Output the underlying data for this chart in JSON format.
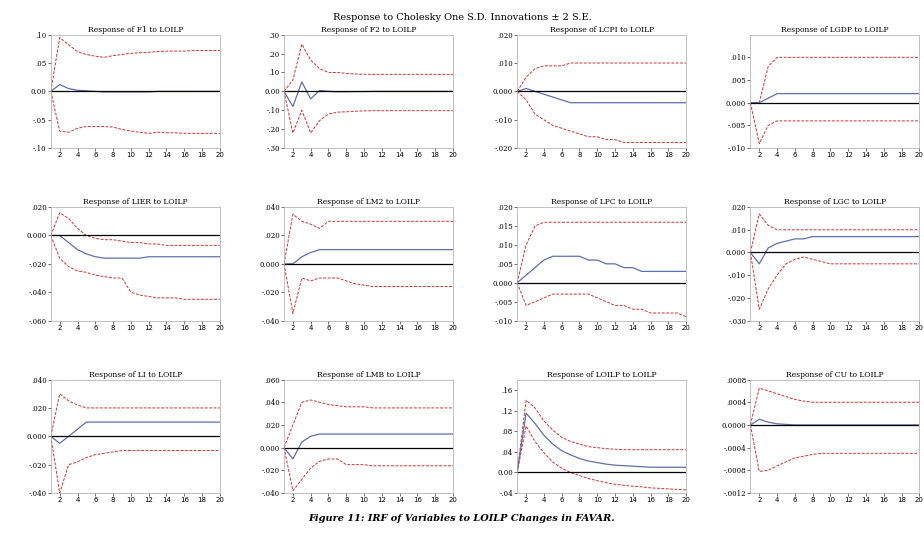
{
  "title": "Response to Cholesky One S.D. Innovations ± 2 S.E.",
  "caption": "Figure 11: IRF of Variables to LOILP Changes in FAVAR.",
  "n_periods": 20,
  "subplots": [
    {
      "title": "Response of F1 to LOILP",
      "ylim": [
        -0.1,
        0.1
      ],
      "yticks": [
        -0.1,
        -0.05,
        0.0,
        0.05,
        0.1
      ],
      "impulse": [
        0.0,
        0.012,
        0.005,
        0.002,
        0.001,
        0.0,
        -0.001,
        -0.001,
        -0.001,
        -0.001,
        -0.001,
        -0.001,
        0.0,
        0.0,
        0.0,
        0.0,
        0.0,
        0.0,
        0.0,
        0.0
      ],
      "upper": [
        0.0,
        0.095,
        0.082,
        0.07,
        0.065,
        0.062,
        0.06,
        0.063,
        0.065,
        0.067,
        0.068,
        0.069,
        0.07,
        0.071,
        0.071,
        0.071,
        0.072,
        0.072,
        0.072,
        0.072
      ],
      "lower": [
        0.0,
        -0.07,
        -0.072,
        -0.065,
        -0.062,
        -0.062,
        -0.062,
        -0.063,
        -0.067,
        -0.07,
        -0.072,
        -0.074,
        -0.072,
        -0.073,
        -0.073,
        -0.074,
        -0.074,
        -0.074,
        -0.074,
        -0.074
      ]
    },
    {
      "title": "Response of F2 to LOILP",
      "ylim": [
        -0.3,
        0.3
      ],
      "yticks": [
        -0.3,
        -0.2,
        -0.1,
        0.0,
        0.1,
        0.2,
        0.3
      ],
      "impulse": [
        0.0,
        -0.08,
        0.05,
        -0.04,
        0.005,
        0.0,
        -0.002,
        -0.002,
        -0.001,
        -0.001,
        0.0,
        0.0,
        0.0,
        0.0,
        0.0,
        0.0,
        0.0,
        0.0,
        0.0,
        0.0
      ],
      "upper": [
        0.0,
        0.06,
        0.25,
        0.165,
        0.12,
        0.1,
        0.1,
        0.095,
        0.092,
        0.09,
        0.09,
        0.09,
        0.09,
        0.09,
        0.09,
        0.09,
        0.09,
        0.09,
        0.09,
        0.09
      ],
      "lower": [
        0.0,
        -0.22,
        -0.1,
        -0.22,
        -0.155,
        -0.12,
        -0.11,
        -0.108,
        -0.105,
        -0.103,
        -0.102,
        -0.102,
        -0.102,
        -0.102,
        -0.102,
        -0.102,
        -0.102,
        -0.102,
        -0.102,
        -0.102
      ]
    },
    {
      "title": "Response of LCPI to LOILP",
      "ylim": [
        -0.02,
        0.02
      ],
      "yticks": [
        -0.02,
        -0.01,
        0.0,
        0.01,
        0.02
      ],
      "impulse": [
        0.0,
        0.001,
        0.0,
        -0.001,
        -0.002,
        -0.003,
        -0.004,
        -0.004,
        -0.004,
        -0.004,
        -0.004,
        -0.004,
        -0.004,
        -0.004,
        -0.004,
        -0.004,
        -0.004,
        -0.004,
        -0.004,
        -0.004
      ],
      "upper": [
        0.0,
        0.005,
        0.008,
        0.009,
        0.009,
        0.009,
        0.01,
        0.01,
        0.01,
        0.01,
        0.01,
        0.01,
        0.01,
        0.01,
        0.01,
        0.01,
        0.01,
        0.01,
        0.01,
        0.01
      ],
      "lower": [
        0.0,
        -0.003,
        -0.008,
        -0.01,
        -0.012,
        -0.013,
        -0.014,
        -0.015,
        -0.016,
        -0.016,
        -0.017,
        -0.017,
        -0.018,
        -0.018,
        -0.018,
        -0.018,
        -0.018,
        -0.018,
        -0.018,
        -0.018
      ]
    },
    {
      "title": "Response of LGDP to LOILP",
      "ylim": [
        -0.01,
        0.015
      ],
      "yticks": [
        -0.01,
        -0.005,
        0.0,
        0.005,
        0.01
      ],
      "impulse": [
        0.0,
        0.0,
        0.001,
        0.002,
        0.002,
        0.002,
        0.002,
        0.002,
        0.002,
        0.002,
        0.002,
        0.002,
        0.002,
        0.002,
        0.002,
        0.002,
        0.002,
        0.002,
        0.002,
        0.002
      ],
      "upper": [
        0.0,
        0.0,
        0.008,
        0.01,
        0.01,
        0.01,
        0.01,
        0.01,
        0.01,
        0.01,
        0.01,
        0.01,
        0.01,
        0.01,
        0.01,
        0.01,
        0.01,
        0.01,
        0.01,
        0.01
      ],
      "lower": [
        0.0,
        -0.009,
        -0.005,
        -0.004,
        -0.004,
        -0.004,
        -0.004,
        -0.004,
        -0.004,
        -0.004,
        -0.004,
        -0.004,
        -0.004,
        -0.004,
        -0.004,
        -0.004,
        -0.004,
        -0.004,
        -0.004,
        -0.004
      ]
    },
    {
      "title": "Response of LIER to LOILP",
      "ylim": [
        -0.06,
        0.02
      ],
      "yticks": [
        -0.06,
        -0.04,
        -0.02,
        0.0,
        0.02
      ],
      "impulse": [
        0.0,
        0.0,
        -0.005,
        -0.01,
        -0.013,
        -0.015,
        -0.016,
        -0.016,
        -0.016,
        -0.016,
        -0.016,
        -0.015,
        -0.015,
        -0.015,
        -0.015,
        -0.015,
        -0.015,
        -0.015,
        -0.015,
        -0.015
      ],
      "upper": [
        0.0,
        0.016,
        0.012,
        0.005,
        0.0,
        -0.002,
        -0.003,
        -0.003,
        -0.004,
        -0.005,
        -0.005,
        -0.006,
        -0.006,
        -0.007,
        -0.007,
        -0.007,
        -0.007,
        -0.007,
        -0.007,
        -0.007
      ],
      "lower": [
        0.0,
        -0.016,
        -0.022,
        -0.025,
        -0.026,
        -0.028,
        -0.029,
        -0.03,
        -0.03,
        -0.04,
        -0.042,
        -0.043,
        -0.044,
        -0.044,
        -0.044,
        -0.045,
        -0.045,
        -0.045,
        -0.045,
        -0.045
      ]
    },
    {
      "title": "Response of LM2 to LOILP",
      "ylim": [
        -0.04,
        0.04
      ],
      "yticks": [
        -0.04,
        -0.02,
        0.0,
        0.02,
        0.04
      ],
      "impulse": [
        0.0,
        0.0,
        0.005,
        0.008,
        0.01,
        0.01,
        0.01,
        0.01,
        0.01,
        0.01,
        0.01,
        0.01,
        0.01,
        0.01,
        0.01,
        0.01,
        0.01,
        0.01,
        0.01,
        0.01
      ],
      "upper": [
        0.0,
        0.035,
        0.03,
        0.028,
        0.025,
        0.03,
        0.03,
        0.03,
        0.03,
        0.03,
        0.03,
        0.03,
        0.03,
        0.03,
        0.03,
        0.03,
        0.03,
        0.03,
        0.03,
        0.03
      ],
      "lower": [
        0.0,
        -0.035,
        -0.01,
        -0.012,
        -0.01,
        -0.01,
        -0.01,
        -0.012,
        -0.014,
        -0.015,
        -0.016,
        -0.016,
        -0.016,
        -0.016,
        -0.016,
        -0.016,
        -0.016,
        -0.016,
        -0.016,
        -0.016
      ]
    },
    {
      "title": "Response of LPC to LOILP",
      "ylim": [
        -0.01,
        0.02
      ],
      "yticks": [
        -0.01,
        -0.005,
        0.0,
        0.005,
        0.01,
        0.015,
        0.02
      ],
      "impulse": [
        0.0,
        0.002,
        0.004,
        0.006,
        0.007,
        0.007,
        0.007,
        0.007,
        0.006,
        0.006,
        0.005,
        0.005,
        0.004,
        0.004,
        0.003,
        0.003,
        0.003,
        0.003,
        0.003,
        0.003
      ],
      "upper": [
        0.0,
        0.01,
        0.015,
        0.016,
        0.016,
        0.016,
        0.016,
        0.016,
        0.016,
        0.016,
        0.016,
        0.016,
        0.016,
        0.016,
        0.016,
        0.016,
        0.016,
        0.016,
        0.016,
        0.016
      ],
      "lower": [
        0.0,
        -0.006,
        -0.005,
        -0.004,
        -0.003,
        -0.003,
        -0.003,
        -0.003,
        -0.003,
        -0.004,
        -0.005,
        -0.006,
        -0.006,
        -0.007,
        -0.007,
        -0.008,
        -0.008,
        -0.008,
        -0.008,
        -0.009
      ]
    },
    {
      "title": "Response of LGC to LOILP",
      "ylim": [
        -0.03,
        0.02
      ],
      "yticks": [
        -0.03,
        -0.02,
        -0.01,
        0.0,
        0.01,
        0.02
      ],
      "impulse": [
        0.0,
        -0.005,
        0.002,
        0.004,
        0.005,
        0.006,
        0.006,
        0.007,
        0.007,
        0.007,
        0.007,
        0.007,
        0.007,
        0.007,
        0.007,
        0.007,
        0.007,
        0.007,
        0.007,
        0.007
      ],
      "upper": [
        0.0,
        0.017,
        0.012,
        0.01,
        0.01,
        0.01,
        0.01,
        0.01,
        0.01,
        0.01,
        0.01,
        0.01,
        0.01,
        0.01,
        0.01,
        0.01,
        0.01,
        0.01,
        0.01,
        0.01
      ],
      "lower": [
        0.0,
        -0.025,
        -0.016,
        -0.01,
        -0.005,
        -0.003,
        -0.002,
        -0.003,
        -0.004,
        -0.005,
        -0.005,
        -0.005,
        -0.005,
        -0.005,
        -0.005,
        -0.005,
        -0.005,
        -0.005,
        -0.005,
        -0.005
      ]
    },
    {
      "title": "Response of LI to LOILP",
      "ylim": [
        -0.04,
        0.04
      ],
      "yticks": [
        -0.04,
        -0.02,
        0.0,
        0.02,
        0.04
      ],
      "impulse": [
        0.0,
        -0.005,
        0.0,
        0.005,
        0.01,
        0.01,
        0.01,
        0.01,
        0.01,
        0.01,
        0.01,
        0.01,
        0.01,
        0.01,
        0.01,
        0.01,
        0.01,
        0.01,
        0.01,
        0.01
      ],
      "upper": [
        0.0,
        0.03,
        0.025,
        0.022,
        0.02,
        0.02,
        0.02,
        0.02,
        0.02,
        0.02,
        0.02,
        0.02,
        0.02,
        0.02,
        0.02,
        0.02,
        0.02,
        0.02,
        0.02,
        0.02
      ],
      "lower": [
        0.0,
        -0.04,
        -0.02,
        -0.018,
        -0.015,
        -0.013,
        -0.012,
        -0.011,
        -0.01,
        -0.01,
        -0.01,
        -0.01,
        -0.01,
        -0.01,
        -0.01,
        -0.01,
        -0.01,
        -0.01,
        -0.01,
        -0.01
      ]
    },
    {
      "title": "Response of LMB to LOILP",
      "ylim": [
        -0.04,
        0.06
      ],
      "yticks": [
        -0.04,
        -0.02,
        0.0,
        0.02,
        0.04,
        0.06
      ],
      "impulse": [
        0.0,
        -0.01,
        0.005,
        0.01,
        0.012,
        0.012,
        0.012,
        0.012,
        0.012,
        0.012,
        0.012,
        0.012,
        0.012,
        0.012,
        0.012,
        0.012,
        0.012,
        0.012,
        0.012,
        0.012
      ],
      "upper": [
        0.0,
        0.02,
        0.04,
        0.042,
        0.04,
        0.038,
        0.037,
        0.036,
        0.036,
        0.036,
        0.035,
        0.035,
        0.035,
        0.035,
        0.035,
        0.035,
        0.035,
        0.035,
        0.035,
        0.035
      ],
      "lower": [
        0.0,
        -0.038,
        -0.028,
        -0.018,
        -0.012,
        -0.01,
        -0.01,
        -0.015,
        -0.015,
        -0.015,
        -0.016,
        -0.016,
        -0.016,
        -0.016,
        -0.016,
        -0.016,
        -0.016,
        -0.016,
        -0.016,
        -0.016
      ]
    },
    {
      "title": "Response of LOILP to LOILP",
      "ylim": [
        -0.04,
        0.18
      ],
      "yticks": [
        -0.04,
        0.0,
        0.04,
        0.08,
        0.12,
        0.16
      ],
      "impulse": [
        0.0,
        0.115,
        0.095,
        0.072,
        0.055,
        0.042,
        0.034,
        0.027,
        0.022,
        0.019,
        0.016,
        0.014,
        0.013,
        0.012,
        0.011,
        0.01,
        0.01,
        0.01,
        0.01,
        0.01
      ],
      "upper": [
        0.0,
        0.14,
        0.125,
        0.1,
        0.082,
        0.068,
        0.06,
        0.055,
        0.05,
        0.048,
        0.046,
        0.045,
        0.044,
        0.044,
        0.044,
        0.044,
        0.044,
        0.044,
        0.044,
        0.044
      ],
      "lower": [
        0.0,
        0.09,
        0.06,
        0.038,
        0.02,
        0.008,
        0.0,
        -0.006,
        -0.012,
        -0.016,
        -0.02,
        -0.023,
        -0.025,
        -0.027,
        -0.028,
        -0.03,
        -0.031,
        -0.032,
        -0.033,
        -0.034
      ]
    },
    {
      "title": "Response of CU to LOILP",
      "ylim": [
        -0.0012,
        0.0008
      ],
      "yticks": [
        -0.0012,
        -0.0008,
        -0.0004,
        0.0,
        0.0004,
        0.0008
      ],
      "impulse": [
        0.0,
        0.0001,
        5e-05,
        2e-05,
        1e-05,
        0.0,
        0.0,
        0.0,
        0.0,
        0.0,
        0.0,
        0.0,
        0.0,
        0.0,
        0.0,
        0.0,
        0.0,
        0.0,
        0.0,
        0.0
      ],
      "upper": [
        0.0,
        0.00065,
        0.0006,
        0.00055,
        0.0005,
        0.00045,
        0.00042,
        0.0004,
        0.0004,
        0.0004,
        0.0004,
        0.0004,
        0.0004,
        0.0004,
        0.0004,
        0.0004,
        0.0004,
        0.0004,
        0.0004,
        0.0004
      ],
      "lower": [
        0.0,
        -0.00082,
        -0.0008,
        -0.00072,
        -0.00065,
        -0.00058,
        -0.00055,
        -0.00052,
        -0.0005,
        -0.0005,
        -0.0005,
        -0.0005,
        -0.0005,
        -0.0005,
        -0.0005,
        -0.0005,
        -0.0005,
        -0.0005,
        -0.0005,
        -0.0005
      ]
    }
  ],
  "impulse_color": "#6070a8",
  "band_color": "#cc3333",
  "zero_line_color": "#000000",
  "title_fontsize": 7.0,
  "subtitle_fontsize": 5.5,
  "tick_fontsize": 5.0,
  "bg_color": "#ffffff"
}
